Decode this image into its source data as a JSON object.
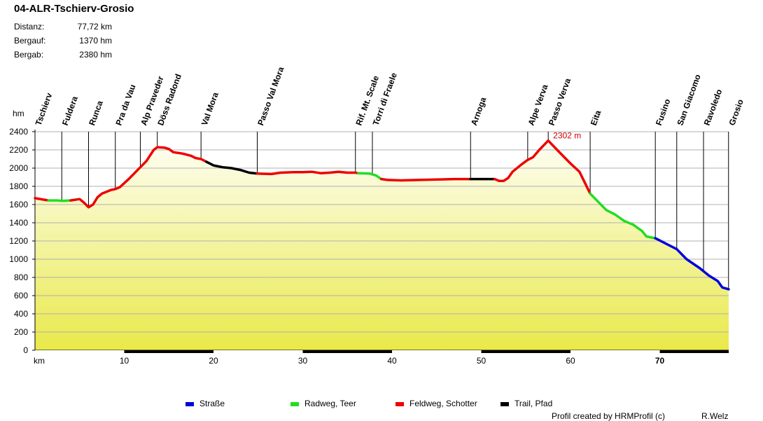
{
  "header": {
    "title": "04-ALR-Tschierv-Grosio"
  },
  "stats": [
    {
      "label": "Distanz:",
      "value": "77,72 km"
    },
    {
      "label": "Bergauf:",
      "value": "1370 hm"
    },
    {
      "label": "Bergab:",
      "value": "2380 hm"
    }
  ],
  "footer": {
    "credit": "Profil created by HRMProfil (c)",
    "author": "R.Welz"
  },
  "chart_data": {
    "type": "area",
    "xlabel": "km",
    "ylabel": "hm",
    "xlim": [
      0,
      77.72
    ],
    "ylim": [
      0,
      2400
    ],
    "x_ticks": [
      10,
      20,
      30,
      40,
      50,
      60,
      70
    ],
    "y_ticks": [
      0,
      200,
      400,
      600,
      800,
      1000,
      1200,
      1400,
      1600,
      1800,
      2000,
      2200,
      2400
    ],
    "grid": true,
    "peak_label": {
      "text": "2302 m",
      "x": 57.5,
      "y": 2302
    },
    "legend": [
      {
        "name": "Straße",
        "color": "#0000dd"
      },
      {
        "name": "Radweg, Teer",
        "color": "#22dd22"
      },
      {
        "name": "Feldweg, Schotter",
        "color": "#ee0000"
      },
      {
        "name": "Trail, Pfad",
        "color": "#000000"
      }
    ],
    "waypoints": [
      {
        "name": "Tschierv",
        "km": 0
      },
      {
        "name": "Fuldera",
        "km": 3.0
      },
      {
        "name": "Runca",
        "km": 6.0
      },
      {
        "name": "Pra da Vau",
        "km": 9.0
      },
      {
        "name": "Alp Praveder",
        "km": 11.8
      },
      {
        "name": "Döss Radond",
        "km": 13.7
      },
      {
        "name": "Val Mora",
        "km": 18.6
      },
      {
        "name": "Passo Val Mora",
        "km": 24.9
      },
      {
        "name": "Rif. Mt. Scale",
        "km": 35.9
      },
      {
        "name": "Torri di Fraele",
        "km": 37.8
      },
      {
        "name": "Arnoga",
        "km": 48.8
      },
      {
        "name": "Alpe Verva",
        "km": 55.2
      },
      {
        "name": "Passo Verva",
        "km": 57.5
      },
      {
        "name": "Eita",
        "km": 62.2
      },
      {
        "name": "Fusino",
        "km": 69.5
      },
      {
        "name": "San Giacomo",
        "km": 71.9
      },
      {
        "name": "Ravoledo",
        "km": 74.9
      },
      {
        "name": "Grosio",
        "km": 77.7
      }
    ],
    "segments": [
      {
        "surface": "Feldweg, Schotter",
        "color": "#ee0000",
        "points": [
          [
            0,
            1670
          ],
          [
            1.2,
            1650
          ],
          [
            1.5,
            1645
          ]
        ]
      },
      {
        "surface": "Radweg, Teer",
        "color": "#22dd22",
        "points": [
          [
            1.5,
            1645
          ],
          [
            2.5,
            1645
          ],
          [
            3.0,
            1640
          ],
          [
            4.0,
            1645
          ]
        ]
      },
      {
        "surface": "Feldweg, Schotter",
        "color": "#ee0000",
        "points": [
          [
            4.0,
            1645
          ],
          [
            5.0,
            1660
          ],
          [
            5.5,
            1620
          ],
          [
            6.0,
            1570
          ],
          [
            6.5,
            1600
          ],
          [
            7.0,
            1680
          ],
          [
            7.5,
            1720
          ],
          [
            8.5,
            1760
          ],
          [
            9.0,
            1770
          ],
          [
            9.5,
            1790
          ],
          [
            10.5,
            1880
          ],
          [
            11.8,
            2010
          ],
          [
            12.5,
            2080
          ],
          [
            13.3,
            2200
          ],
          [
            13.7,
            2230
          ],
          [
            14.5,
            2225
          ],
          [
            15.0,
            2210
          ],
          [
            15.5,
            2175
          ],
          [
            16.5,
            2160
          ],
          [
            17.5,
            2135
          ],
          [
            18.0,
            2110
          ],
          [
            18.6,
            2100
          ],
          [
            19.2,
            2070
          ]
        ]
      },
      {
        "surface": "Trail, Pfad",
        "color": "#000000",
        "points": [
          [
            19.2,
            2070
          ],
          [
            20.0,
            2030
          ],
          [
            21.0,
            2010
          ],
          [
            22.0,
            2000
          ],
          [
            23.0,
            1980
          ],
          [
            24.0,
            1950
          ],
          [
            24.9,
            1940
          ]
        ]
      },
      {
        "surface": "Feldweg, Schotter",
        "color": "#ee0000",
        "points": [
          [
            24.9,
            1940
          ],
          [
            26.5,
            1935
          ],
          [
            27.5,
            1950
          ],
          [
            29.0,
            1955
          ],
          [
            30.0,
            1955
          ],
          [
            31.0,
            1960
          ],
          [
            32.0,
            1945
          ],
          [
            33.0,
            1950
          ],
          [
            34.0,
            1960
          ],
          [
            35.0,
            1950
          ],
          [
            35.9,
            1950
          ],
          [
            36.2,
            1945
          ]
        ]
      },
      {
        "surface": "Radweg, Teer",
        "color": "#22dd22",
        "points": [
          [
            36.2,
            1945
          ],
          [
            37.5,
            1940
          ],
          [
            38.2,
            1920
          ],
          [
            38.8,
            1880
          ]
        ]
      },
      {
        "surface": "Feldweg, Schotter",
        "color": "#ee0000",
        "points": [
          [
            38.8,
            1880
          ],
          [
            39.5,
            1870
          ],
          [
            41.0,
            1865
          ],
          [
            43.0,
            1870
          ],
          [
            45.0,
            1875
          ],
          [
            47.0,
            1880
          ],
          [
            48.8,
            1880
          ]
        ]
      },
      {
        "surface": "Trail, Pfad",
        "color": "#000000",
        "points": [
          [
            48.8,
            1880
          ],
          [
            50.0,
            1880
          ],
          [
            51.5,
            1880
          ]
        ]
      },
      {
        "surface": "Feldweg, Schotter",
        "color": "#ee0000",
        "points": [
          [
            51.5,
            1880
          ],
          [
            52.0,
            1860
          ],
          [
            52.5,
            1860
          ],
          [
            53.0,
            1890
          ],
          [
            53.5,
            1960
          ],
          [
            54.5,
            2040
          ],
          [
            55.2,
            2090
          ],
          [
            55.8,
            2120
          ],
          [
            56.5,
            2200
          ],
          [
            57.5,
            2302
          ],
          [
            58.2,
            2230
          ],
          [
            59.0,
            2150
          ],
          [
            60.0,
            2050
          ],
          [
            61.0,
            1960
          ],
          [
            61.5,
            1860
          ],
          [
            62.2,
            1720
          ]
        ]
      },
      {
        "surface": "Radweg, Teer",
        "color": "#22dd22",
        "points": [
          [
            62.2,
            1720
          ],
          [
            63.0,
            1640
          ],
          [
            64.0,
            1540
          ],
          [
            65.0,
            1490
          ],
          [
            66.0,
            1420
          ],
          [
            67.0,
            1380
          ],
          [
            68.0,
            1310
          ],
          [
            68.5,
            1250
          ],
          [
            69.5,
            1230
          ]
        ]
      },
      {
        "surface": "Straße",
        "color": "#0000dd",
        "points": [
          [
            69.5,
            1230
          ],
          [
            70.5,
            1180
          ],
          [
            71.9,
            1110
          ],
          [
            73.0,
            1000
          ],
          [
            74.5,
            900
          ],
          [
            75.5,
            820
          ],
          [
            76.5,
            760
          ],
          [
            77.0,
            690
          ],
          [
            77.72,
            670
          ]
        ]
      }
    ]
  }
}
